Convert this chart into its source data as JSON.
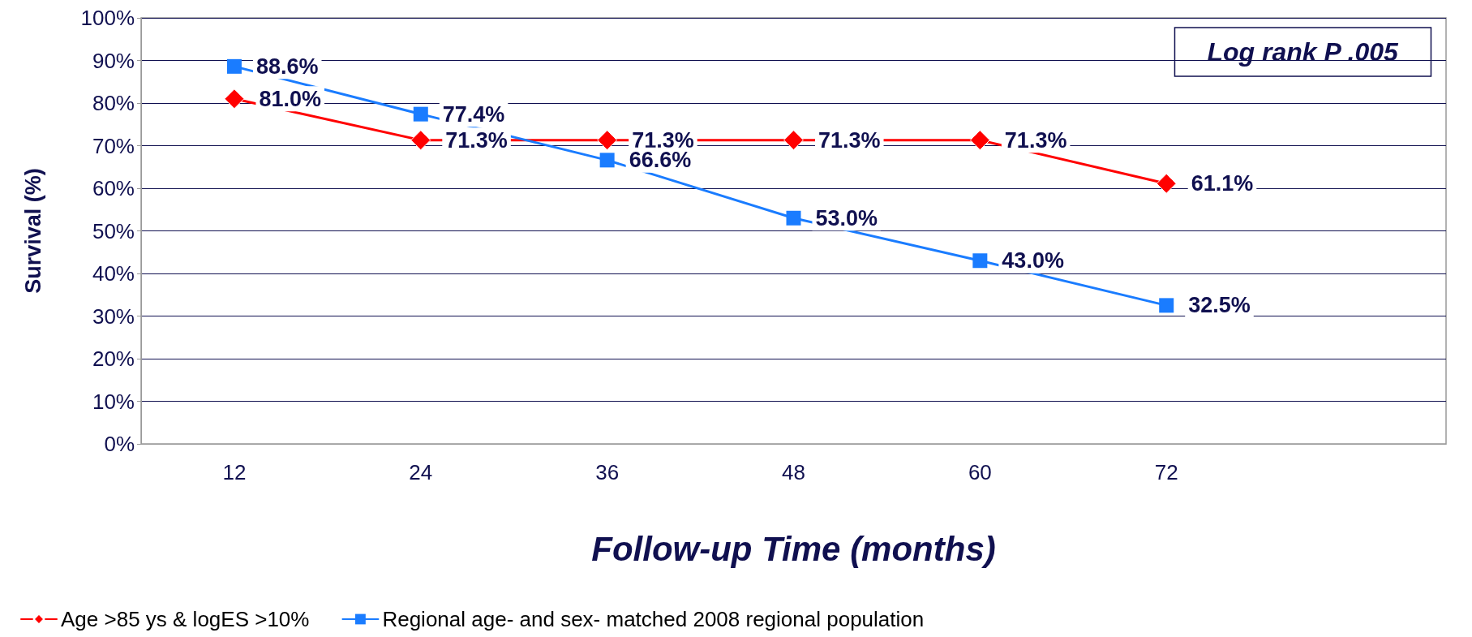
{
  "chart_data": {
    "type": "line",
    "xlabel": "Follow-up Time (months)",
    "ylabel": "Survival (%)",
    "categories": [
      "12",
      "24",
      "36",
      "48",
      "60",
      "72",
      null
    ],
    "ylim": [
      0,
      100
    ],
    "yticks": [
      {
        "value": 0,
        "label": "0%"
      },
      {
        "value": 10,
        "label": "10%"
      },
      {
        "value": 20,
        "label": "20%"
      },
      {
        "value": 30,
        "label": "30%"
      },
      {
        "value": 40,
        "label": "40%"
      },
      {
        "value": 50,
        "label": "50%"
      },
      {
        "value": 60,
        "label": "60%"
      },
      {
        "value": 70,
        "label": "70%"
      },
      {
        "value": 80,
        "label": "80%"
      },
      {
        "value": 90,
        "label": "90%"
      },
      {
        "value": 100,
        "label": "100%"
      }
    ],
    "grid": "y",
    "legend": "bottom",
    "line_style": "solid",
    "annotations": [
      "Log rank P .005"
    ],
    "series": [
      {
        "name": "Age >85 ys & logES >10%",
        "color": "#ff0000",
        "marker": "diamond",
        "values": [
          81.0,
          71.3,
          71.3,
          71.3,
          71.3,
          61.1,
          null
        ],
        "value_labels": [
          "81.0%",
          "71.3%",
          "71.3%",
          "71.3%",
          "71.3%",
          "61.1%",
          null
        ]
      },
      {
        "name": "Regional age- and sex- matched 2008 regional population",
        "color": "#1a7cff",
        "marker": "square",
        "values": [
          88.6,
          77.4,
          66.6,
          53.0,
          43.0,
          32.5,
          null
        ],
        "value_labels": [
          "88.6%",
          "77.4%",
          "66.6%",
          "53.0%",
          "43.0%",
          "32.5%",
          null
        ]
      }
    ]
  }
}
